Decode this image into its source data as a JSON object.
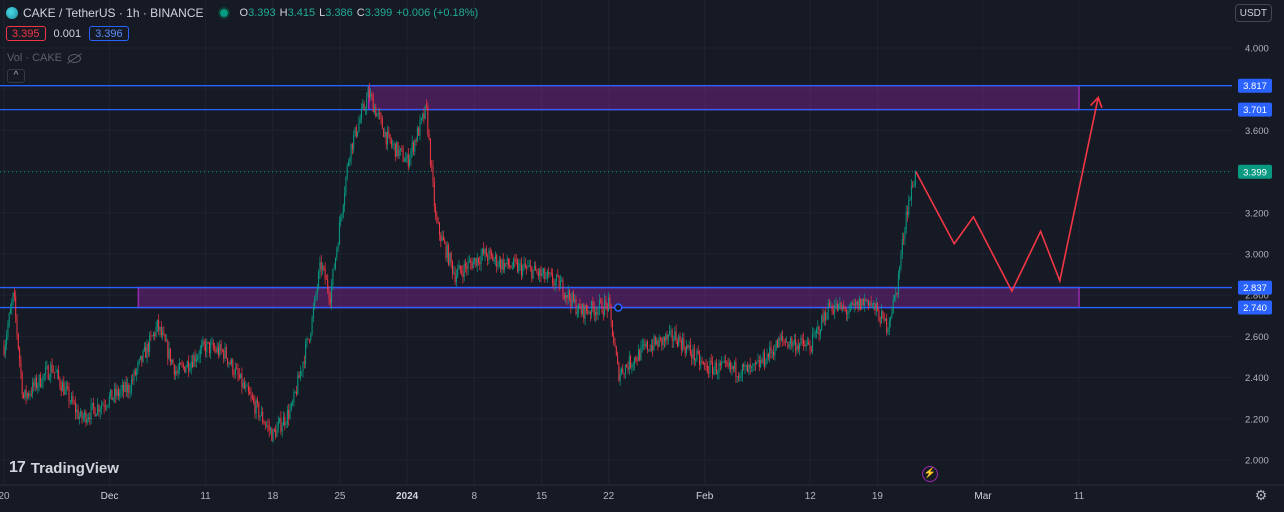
{
  "header": {
    "symbol": "CAKE / TetherUS · 1h · BINANCE",
    "ohlc": [
      {
        "k": "O",
        "v": "3.393"
      },
      {
        "k": "H",
        "v": "3.415"
      },
      {
        "k": "L",
        "v": "3.386"
      },
      {
        "k": "C",
        "v": "3.399"
      }
    ],
    "change": "+0.006 (+0.18%)",
    "sell_price": "3.395",
    "spread": "0.001",
    "buy_price": "3.396",
    "volume_label": "Vol · CAKE",
    "currency": "USDT"
  },
  "branding": {
    "name": "TradingView",
    "mark": "17"
  },
  "colors": {
    "background": "#161a25",
    "grid": "#1f2330",
    "up": "#089981",
    "down": "#f23645",
    "levels": "#2962ff",
    "zone_fill": "rgba(156,39,176,0.35)",
    "zone_border": "#9c27b0",
    "projection": "#f23645",
    "current_price_tag": "#089981"
  },
  "chart_data": {
    "type": "candlestick",
    "title": "",
    "ylim": [
      1.96,
      4.05
    ],
    "yticks": [
      "4.000",
      "3.800",
      "3.600",
      "3.400",
      "3.200",
      "3.000",
      "2.800",
      "2.600",
      "2.400",
      "2.200",
      "2.000"
    ],
    "xtick_labels": [
      "20",
      "Dec",
      "11",
      "18",
      "25",
      "2024",
      "8",
      "15",
      "22",
      "Feb",
      "12",
      "19",
      "Mar",
      "11"
    ],
    "horizontal_levels": [
      {
        "value": 3.817,
        "label": "3.817"
      },
      {
        "value": 3.701,
        "label": "3.701"
      },
      {
        "value": 2.837,
        "label": "2.837"
      },
      {
        "value": 2.74,
        "label": "2.740"
      }
    ],
    "zones": [
      {
        "from": 3.701,
        "to": 3.817,
        "start_label": "Dec 28",
        "end_label": "Mar 11"
      },
      {
        "from": 2.74,
        "to": 2.837,
        "start_label": "Dec 4",
        "end_label": "Mar 11"
      }
    ],
    "current_price": {
      "value": 3.399,
      "label": "3.399"
    },
    "price_path": [
      [
        "Nov 20",
        2.55
      ],
      [
        "Nov 21",
        2.8
      ],
      [
        "Nov 22",
        2.3
      ],
      [
        "Nov 25",
        2.45
      ],
      [
        "Nov 28",
        2.2
      ],
      [
        "Dec 1",
        2.3
      ],
      [
        "Dec 3",
        2.35
      ],
      [
        "Dec 6",
        2.65
      ],
      [
        "Dec 8",
        2.42
      ],
      [
        "Dec 11",
        2.55
      ],
      [
        "Dec 13",
        2.52
      ],
      [
        "Dec 15",
        2.35
      ],
      [
        "Dec 18",
        2.12
      ],
      [
        "Dec 20",
        2.25
      ],
      [
        "Dec 22",
        2.65
      ],
      [
        "Dec 23",
        2.95
      ],
      [
        "Dec 24",
        2.8
      ],
      [
        "Dec 26",
        3.5
      ],
      [
        "Dec 28",
        3.78
      ],
      [
        "Dec 30",
        3.55
      ],
      [
        "Jan 1",
        3.45
      ],
      [
        "Jan 3",
        3.7
      ],
      [
        "Jan 4",
        3.15
      ],
      [
        "Jan 6",
        2.9
      ],
      [
        "Jan 9",
        3.0
      ],
      [
        "Jan 11",
        2.95
      ],
      [
        "Jan 14",
        2.92
      ],
      [
        "Jan 17",
        2.85
      ],
      [
        "Jan 19",
        2.72
      ],
      [
        "Jan 22",
        2.75
      ],
      [
        "Jan 23",
        2.42
      ],
      [
        "Jan 26",
        2.55
      ],
      [
        "Jan 29",
        2.6
      ],
      [
        "Feb 1",
        2.45
      ],
      [
        "Feb 4",
        2.44
      ],
      [
        "Feb 6",
        2.43
      ],
      [
        "Feb 9",
        2.58
      ],
      [
        "Feb 12",
        2.55
      ],
      [
        "Feb 14",
        2.75
      ],
      [
        "Feb 16",
        2.72
      ],
      [
        "Feb 18",
        2.78
      ],
      [
        "Feb 20",
        2.65
      ],
      [
        "Feb 21",
        2.82
      ],
      [
        "Feb 22",
        3.2
      ],
      [
        "Feb 23",
        3.399
      ]
    ],
    "projection": [
      [
        "Feb 23",
        3.4
      ],
      [
        "Feb 27",
        3.05
      ],
      [
        "Feb 29",
        3.18
      ],
      [
        "Mar 4",
        2.82
      ],
      [
        "Mar 7",
        3.11
      ],
      [
        "Mar 9",
        2.87
      ],
      [
        "Mar 13",
        3.76
      ]
    ]
  }
}
